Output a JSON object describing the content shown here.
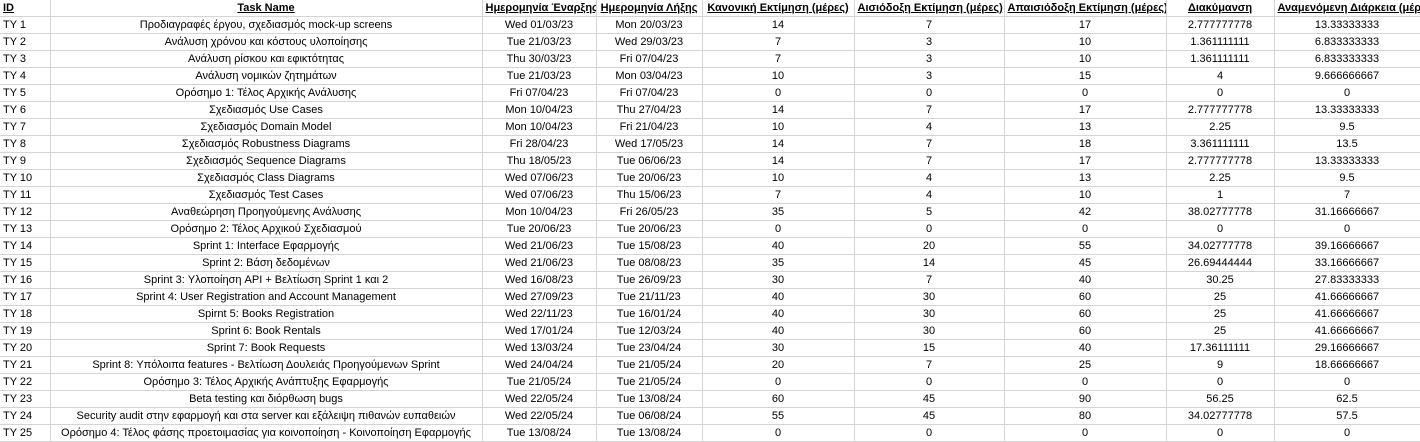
{
  "headers": {
    "id": "ID",
    "task_name": "Task Name",
    "start": "Ημερομηνία Έναρξης",
    "end": "Ημερομηνία Λήξης",
    "normal": "Κανονική Εκτίμηση (μέρες)",
    "optimistic": "Αισιόδοξη Εκτίμηση (μέρες)",
    "pessimistic": "Απαισιόδοξη Εκτίμηση (μέρες)",
    "variance": "Διακύμανση",
    "expected": "Αναμενόμενη Διάρκεια (μέρες)"
  },
  "rows": [
    {
      "id": "TY 1",
      "name": "Προδιαγραφές έργου, σχεδιασμός mock-up screens",
      "start": "Wed 01/03/23",
      "end": "Mon 20/03/23",
      "normal": "14",
      "opt": "7",
      "pes": "17",
      "var": "2.777777778",
      "exp": "13.33333333"
    },
    {
      "id": "TY 2",
      "name": "Ανάλυση χρόνου και κόστους υλοποίησης",
      "start": "Tue 21/03/23",
      "end": "Wed 29/03/23",
      "normal": "7",
      "opt": "3",
      "pes": "10",
      "var": "1.361111111",
      "exp": "6.833333333"
    },
    {
      "id": "TY 3",
      "name": "Ανάλυση ρίσκου και εφικτότητας",
      "start": "Thu 30/03/23",
      "end": "Fri 07/04/23",
      "normal": "7",
      "opt": "3",
      "pes": "10",
      "var": "1.361111111",
      "exp": "6.833333333"
    },
    {
      "id": "TY 4",
      "name": "Ανάλυση νομικών ζητημάτων",
      "start": "Tue 21/03/23",
      "end": "Mon 03/04/23",
      "normal": "10",
      "opt": "3",
      "pes": "15",
      "var": "4",
      "exp": "9.666666667"
    },
    {
      "id": "TY 5",
      "name": "Ορόσημο 1: Τέλος Αρχικής Ανάλυσης",
      "start": "Fri 07/04/23",
      "end": "Fri 07/04/23",
      "normal": "0",
      "opt": "0",
      "pes": "0",
      "var": "0",
      "exp": "0"
    },
    {
      "id": "TY 6",
      "name": "Σχεδιασμός Use Cases",
      "start": "Mon 10/04/23",
      "end": "Thu 27/04/23",
      "normal": "14",
      "opt": "7",
      "pes": "17",
      "var": "2.777777778",
      "exp": "13.33333333"
    },
    {
      "id": "TY 7",
      "name": "Σχεδιασμός Domain Model",
      "start": "Mon 10/04/23",
      "end": "Fri 21/04/23",
      "normal": "10",
      "opt": "4",
      "pes": "13",
      "var": "2.25",
      "exp": "9.5"
    },
    {
      "id": "TY 8",
      "name": "Σχεδιασμός Robustness Diagrams",
      "start": "Fri 28/04/23",
      "end": "Wed 17/05/23",
      "normal": "14",
      "opt": "7",
      "pes": "18",
      "var": "3.361111111",
      "exp": "13.5"
    },
    {
      "id": "TY 9",
      "name": "Σχεδιασμός Sequence Diagrams",
      "start": "Thu 18/05/23",
      "end": "Tue 06/06/23",
      "normal": "14",
      "opt": "7",
      "pes": "17",
      "var": "2.777777778",
      "exp": "13.33333333"
    },
    {
      "id": "TY 10",
      "name": "Σχεδιασμός Class Diagrams",
      "start": "Wed 07/06/23",
      "end": "Tue 20/06/23",
      "normal": "10",
      "opt": "4",
      "pes": "13",
      "var": "2.25",
      "exp": "9.5"
    },
    {
      "id": "TY 11",
      "name": "Σχεδιασμός Test Cases",
      "start": "Wed 07/06/23",
      "end": "Thu 15/06/23",
      "normal": "7",
      "opt": "4",
      "pes": "10",
      "var": "1",
      "exp": "7"
    },
    {
      "id": "TY 12",
      "name": "Αναθεώρηση Προηγούμενης Ανάλυσης",
      "start": "Mon 10/04/23",
      "end": "Fri 26/05/23",
      "normal": "35",
      "opt": "5",
      "pes": "42",
      "var": "38.02777778",
      "exp": "31.16666667"
    },
    {
      "id": "TY 13",
      "name": "Ορόσημο 2: Τέλος Αρχικού Σχεδιασμού",
      "start": "Tue 20/06/23",
      "end": "Tue 20/06/23",
      "normal": "0",
      "opt": "0",
      "pes": "0",
      "var": "0",
      "exp": "0"
    },
    {
      "id": "TY 14",
      "name": "Sprint 1: Interface Εφαρμογής",
      "start": "Wed 21/06/23",
      "end": "Tue 15/08/23",
      "normal": "40",
      "opt": "20",
      "pes": "55",
      "var": "34.02777778",
      "exp": "39.16666667"
    },
    {
      "id": "TY 15",
      "name": "Sprint 2: Βάση δεδομένων",
      "start": "Wed 21/06/23",
      "end": "Tue 08/08/23",
      "normal": "35",
      "opt": "14",
      "pes": "45",
      "var": "26.69444444",
      "exp": "33.16666667"
    },
    {
      "id": "TY 16",
      "name": "Sprint 3: Υλοποίηση API + Βελτίωση Sprint 1 και 2",
      "start": "Wed 16/08/23",
      "end": "Tue 26/09/23",
      "normal": "30",
      "opt": "7",
      "pes": "40",
      "var": "30.25",
      "exp": "27.83333333"
    },
    {
      "id": "TY 17",
      "name": "Sprint 4: User Registration and Account Management",
      "start": "Wed 27/09/23",
      "end": "Tue 21/11/23",
      "normal": "40",
      "opt": "30",
      "pes": "60",
      "var": "25",
      "exp": "41.66666667"
    },
    {
      "id": "TY 18",
      "name": "Spirnt 5: Books Registration",
      "start": "Wed 22/11/23",
      "end": "Tue 16/01/24",
      "normal": "40",
      "opt": "30",
      "pes": "60",
      "var": "25",
      "exp": "41.66666667"
    },
    {
      "id": "TY 19",
      "name": "Sprint 6: Book Rentals",
      "start": "Wed 17/01/24",
      "end": "Tue 12/03/24",
      "normal": "40",
      "opt": "30",
      "pes": "60",
      "var": "25",
      "exp": "41.66666667"
    },
    {
      "id": "TY 20",
      "name": "Sprint 7: Book Requests",
      "start": "Wed 13/03/24",
      "end": "Tue 23/04/24",
      "normal": "30",
      "opt": "15",
      "pes": "40",
      "var": "17.36111111",
      "exp": "29.16666667"
    },
    {
      "id": "TY 21",
      "name": "Sprint 8: Υπόλοιπα features - Βελτίωση Δουλειάς Προηγούμενων Sprint",
      "start": "Wed 24/04/24",
      "end": "Tue 21/05/24",
      "normal": "20",
      "opt": "7",
      "pes": "25",
      "var": "9",
      "exp": "18.66666667"
    },
    {
      "id": "TY 22",
      "name": "Ορόσημο 3: Τέλος Αρχικής Ανάπτυξης Εφαρμογής",
      "start": "Tue 21/05/24",
      "end": "Tue 21/05/24",
      "normal": "0",
      "opt": "0",
      "pes": "0",
      "var": "0",
      "exp": "0"
    },
    {
      "id": "TY 23",
      "name": "Beta testing και διόρθωση bugs",
      "start": "Wed 22/05/24",
      "end": "Tue 13/08/24",
      "normal": "60",
      "opt": "45",
      "pes": "90",
      "var": "56.25",
      "exp": "62.5"
    },
    {
      "id": "TY 24",
      "name": "Security audit στην εφαρμογή και στα server και εξάλειψη πιθανών ευπαθειών",
      "start": "Wed 22/05/24",
      "end": "Tue 06/08/24",
      "normal": "55",
      "opt": "45",
      "pes": "80",
      "var": "34.02777778",
      "exp": "57.5"
    },
    {
      "id": "TY 25",
      "name": "Ορόσημο 4: Τέλος φάσης προετοιμασίας για κοινοποίηση - Κοινοποίηση Εφαρμογής",
      "start": "Tue 13/08/24",
      "end": "Tue 13/08/24",
      "normal": "0",
      "opt": "0",
      "pes": "0",
      "var": "0",
      "exp": "0"
    }
  ]
}
